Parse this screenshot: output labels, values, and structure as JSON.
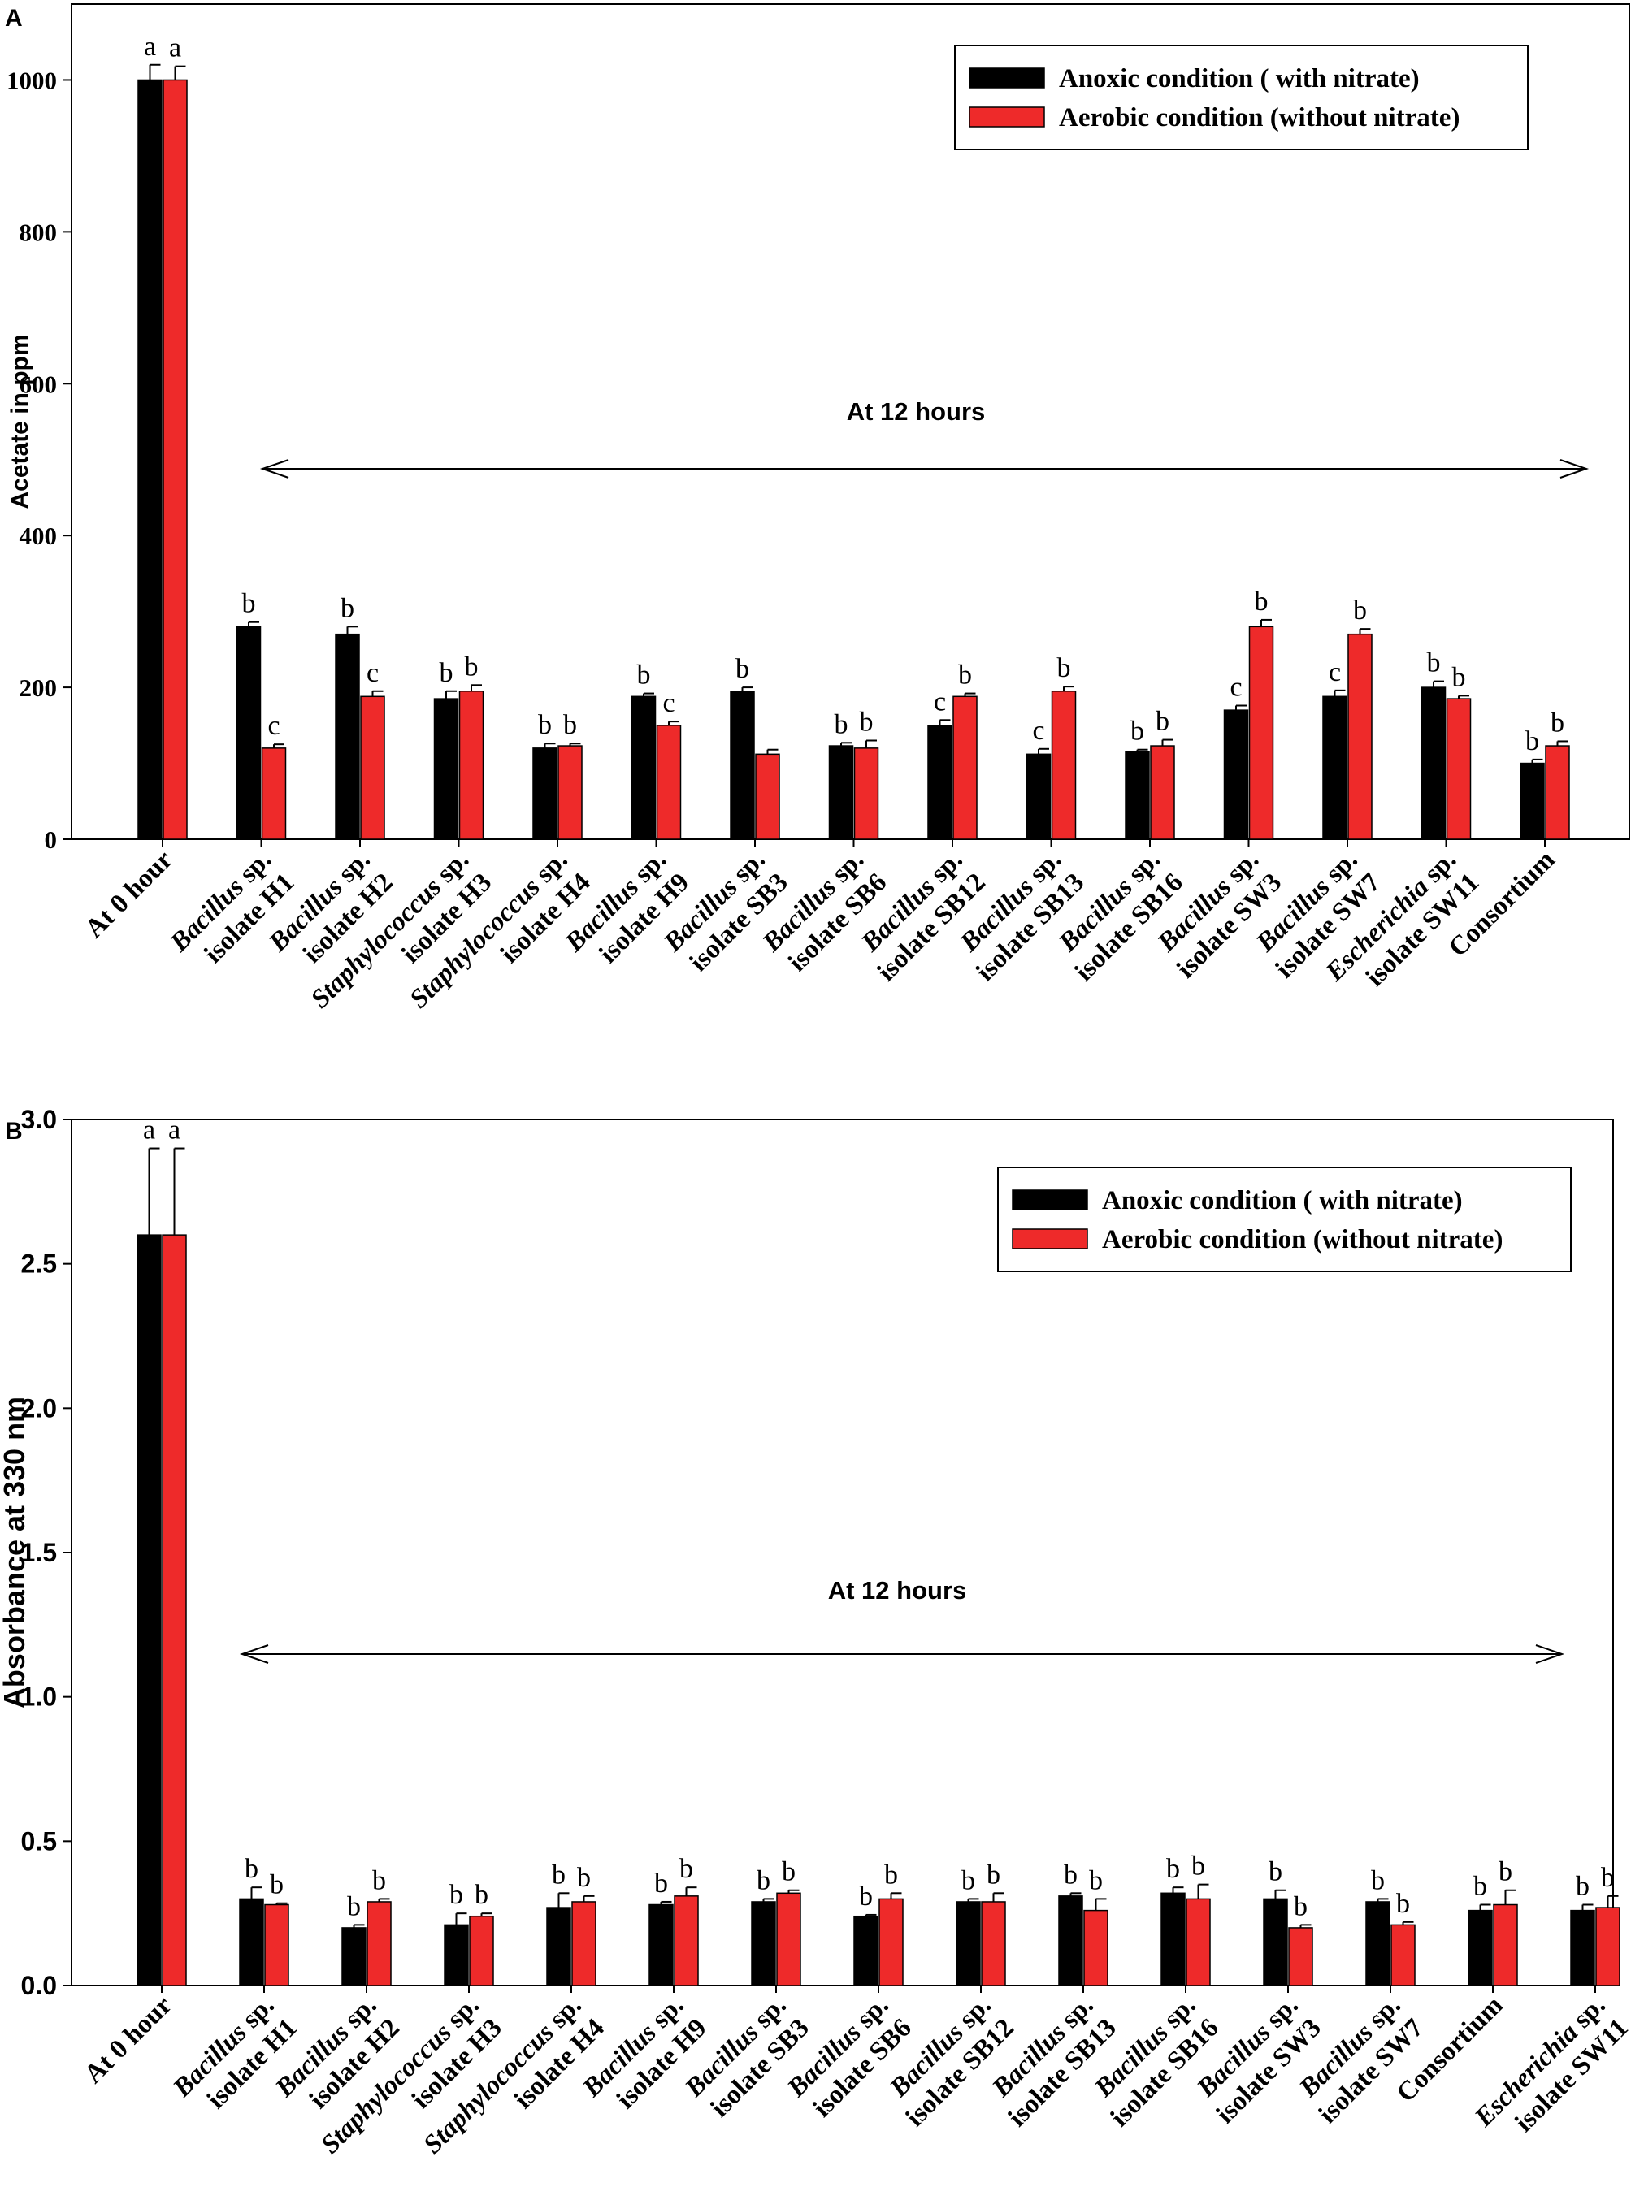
{
  "series_names": [
    "Anoxic condition ( with nitrate)",
    "Aerobic condition (without nitrate)"
  ],
  "colors": {
    "anoxic": "#000000",
    "aerobic": "#ee2a2a",
    "axis": "#000000"
  },
  "chart_data": [
    {
      "type": "bar",
      "panel": "A",
      "ylabel": "Acetate in ppm",
      "ylim": [
        0,
        1100
      ],
      "yticks": [
        "0",
        "200",
        "400",
        "600",
        "800",
        "1000"
      ],
      "annotation": "At 12 hours",
      "legend": "top-right",
      "categories": [
        {
          "line1": "At 0 hour",
          "italic1": "",
          "line2": ""
        },
        {
          "line1": "sp.",
          "italic1": "Bacillus",
          "line2": "isolate H1"
        },
        {
          "line1": "sp.",
          "italic1": "Bacillus",
          "line2": "isolate H2"
        },
        {
          "line1": "sp.",
          "italic1": "Staphylococcus",
          "line2": "isolate H3"
        },
        {
          "line1": "sp.",
          "italic1": "Staphylococcus",
          "line2": "isolate H4"
        },
        {
          "line1": "sp.",
          "italic1": "Bacillus",
          "line2": "isolate H9"
        },
        {
          "line1": "sp.",
          "italic1": "Bacillus",
          "line2": "isolate SB3"
        },
        {
          "line1": "sp.",
          "italic1": "Bacillus",
          "line2": "isolate SB6"
        },
        {
          "line1": "sp.",
          "italic1": "Bacillus",
          "line2": "isolate SB12"
        },
        {
          "line1": "sp.",
          "italic1": "Bacillus",
          "line2": "isolate SB13"
        },
        {
          "line1": "sp.",
          "italic1": "Bacillus",
          "line2": "isolate SB16"
        },
        {
          "line1": "sp.",
          "italic1": "Bacillus",
          "line2": "isolate SW3"
        },
        {
          "line1": "sp.",
          "italic1": "Bacillus",
          "line2": "isolate SW7"
        },
        {
          "line1": "sp.",
          "italic1": "Escherichia",
          "line2": "isolate SW11"
        },
        {
          "line1": "Consortium",
          "italic1": "",
          "line2": ""
        }
      ],
      "series": [
        {
          "name": "Anoxic condition ( with nitrate)",
          "values": [
            1000,
            280,
            270,
            185,
            120,
            188,
            195,
            123,
            150,
            112,
            115,
            170,
            188,
            200,
            100
          ],
          "errors": [
            20,
            6,
            10,
            10,
            6,
            4,
            5,
            4,
            7,
            7,
            3,
            6,
            8,
            8,
            5
          ],
          "letters": [
            "a",
            "b",
            "b",
            "b",
            "b",
            "b",
            "b",
            "b",
            "c",
            "c",
            "b",
            "c",
            "c",
            "b",
            "b"
          ]
        },
        {
          "name": "Aerobic condition (without nitrate)",
          "values": [
            1000,
            120,
            188,
            195,
            123,
            150,
            112,
            120,
            188,
            195,
            123,
            280,
            270,
            185,
            123
          ],
          "errors": [
            18,
            5,
            7,
            8,
            3,
            5,
            6,
            10,
            4,
            6,
            8,
            9,
            7,
            4,
            6
          ],
          "letters": [
            "a",
            "c",
            "c",
            "b",
            "b",
            "c",
            "",
            "b",
            "b",
            "b",
            "b",
            "b",
            "b",
            "b",
            "b"
          ]
        }
      ]
    },
    {
      "type": "bar",
      "panel": "B",
      "ylabel": "Absorbance at 330 nm",
      "ylim": [
        0,
        3.0
      ],
      "yticks": [
        "0.0",
        "0.5",
        "1.0",
        "1.5",
        "2.0",
        "2.5",
        "3.0"
      ],
      "annotation": "At 12 hours",
      "legend": "top-right",
      "categories": [
        {
          "line1": "At 0 hour",
          "italic1": "",
          "line2": ""
        },
        {
          "line1": "sp.",
          "italic1": "Bacillus",
          "line2": "isolate H1"
        },
        {
          "line1": "sp.",
          "italic1": "Bacillus",
          "line2": "isolate H2"
        },
        {
          "line1": "sp.",
          "italic1": "Staphylococcus",
          "line2": "isolate H3"
        },
        {
          "line1": "sp.",
          "italic1": "Staphylococcus",
          "line2": "isolate H4"
        },
        {
          "line1": "sp.",
          "italic1": "Bacillus",
          "line2": "isolate H9"
        },
        {
          "line1": "sp.",
          "italic1": "Bacillus",
          "line2": "isolate SB3"
        },
        {
          "line1": "sp.",
          "italic1": "Bacillus",
          "line2": "isolate SB6"
        },
        {
          "line1": "sp.",
          "italic1": "Bacillus",
          "line2": "isolate SB12"
        },
        {
          "line1": "sp.",
          "italic1": "Bacillus",
          "line2": "isolate SB13"
        },
        {
          "line1": "sp.",
          "italic1": "Bacillus",
          "line2": "isolate SB16"
        },
        {
          "line1": "sp.",
          "italic1": "Bacillus",
          "line2": "isolate SW3"
        },
        {
          "line1": "sp.",
          "italic1": "Bacillus",
          "line2": "isolate SW7"
        },
        {
          "line1": "Consortium",
          "italic1": "",
          "line2": ""
        },
        {
          "line1": "sp.",
          "italic1": "Escherichia",
          "line2": "isolate SW11"
        }
      ],
      "series": [
        {
          "name": "Anoxic condition ( with nitrate)",
          "values": [
            2.6,
            0.3,
            0.2,
            0.21,
            0.27,
            0.28,
            0.29,
            0.24,
            0.29,
            0.31,
            0.32,
            0.3,
            0.29,
            0.26,
            0.26
          ],
          "errors": [
            0.3,
            0.04,
            0.01,
            0.04,
            0.05,
            0.01,
            0.01,
            0.005,
            0.01,
            0.01,
            0.02,
            0.03,
            0.01,
            0.02,
            0.02
          ],
          "letters": [
            "a",
            "b",
            "b",
            "b",
            "b",
            "b",
            "b",
            "b",
            "b",
            "b",
            "b",
            "b",
            "b",
            "b",
            "b"
          ]
        },
        {
          "name": "Aerobic condition (without nitrate)",
          "values": [
            2.6,
            0.28,
            0.29,
            0.24,
            0.29,
            0.31,
            0.32,
            0.3,
            0.29,
            0.26,
            0.3,
            0.2,
            0.21,
            0.28,
            0.27
          ],
          "errors": [
            0.3,
            0.005,
            0.01,
            0.01,
            0.02,
            0.03,
            0.01,
            0.02,
            0.03,
            0.04,
            0.05,
            0.01,
            0.01,
            0.05,
            0.04
          ],
          "letters": [
            "a",
            "b",
            "b",
            "b",
            "b",
            "b",
            "b",
            "b",
            "b",
            "b",
            "b",
            "b",
            "b",
            "b",
            "b"
          ]
        }
      ]
    }
  ]
}
